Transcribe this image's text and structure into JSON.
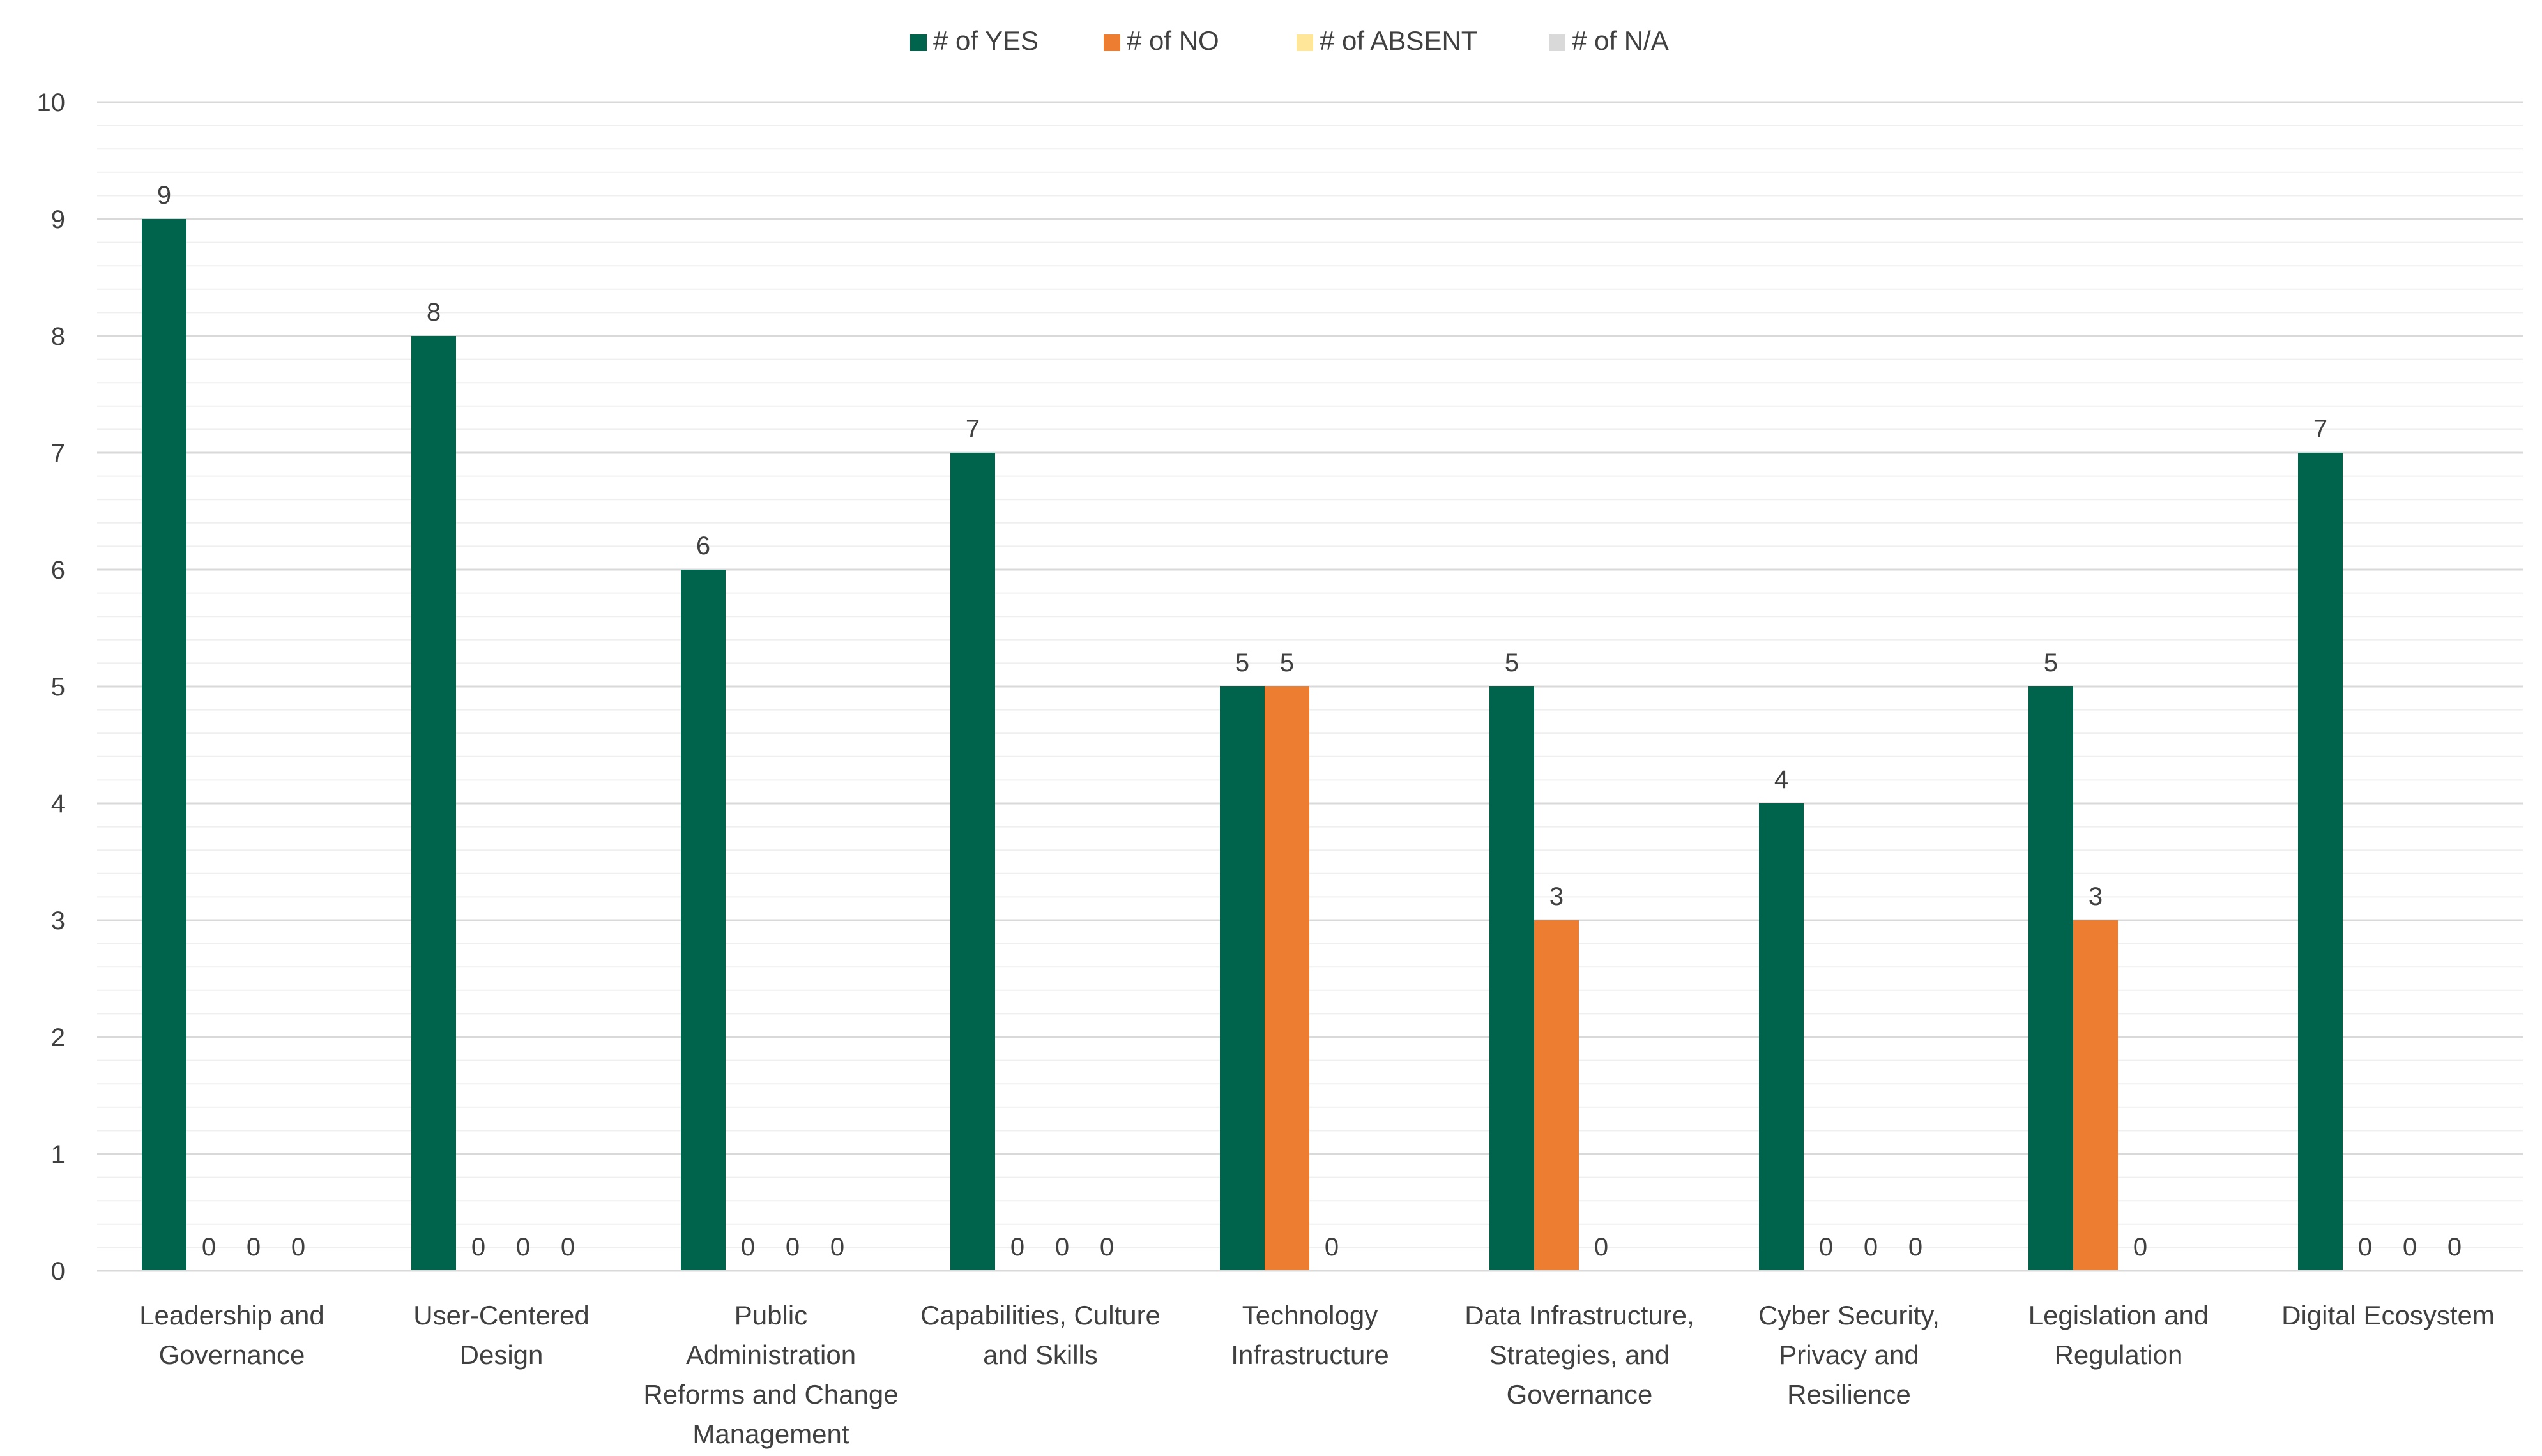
{
  "chart_data": {
    "type": "bar",
    "title": "",
    "xlabel": "",
    "ylabel": "",
    "ylim": [
      0,
      10
    ],
    "yticks": [
      0,
      1,
      2,
      3,
      4,
      5,
      6,
      7,
      8,
      9,
      10
    ],
    "grid": true,
    "legend_position": "top-center",
    "categories": [
      [
        "Leadership and",
        "Governance"
      ],
      [
        "User-Centered",
        "Design"
      ],
      [
        "Public",
        "Administration",
        "Reforms and Change",
        "Management"
      ],
      [
        "Capabilities, Culture",
        "and Skills"
      ],
      [
        "Technology",
        "Infrastructure"
      ],
      [
        "Data Infrastructure,",
        "Strategies, and",
        "Governance"
      ],
      [
        "Cyber Security,",
        "Privacy and",
        "Resilience"
      ],
      [
        "Legislation and",
        "Regulation"
      ],
      [
        "Digital Ecosystem"
      ]
    ],
    "series": [
      {
        "name": "# of YES",
        "color": "#00634b",
        "values": [
          9,
          8,
          6,
          7,
          5,
          5,
          4,
          5,
          7
        ]
      },
      {
        "name": "# of NO",
        "color": "#ed7d31",
        "values": [
          0,
          0,
          0,
          0,
          5,
          3,
          0,
          3,
          0
        ]
      },
      {
        "name": "# of ABSENT",
        "color": "#ffe699",
        "values": [
          0,
          0,
          0,
          0,
          0,
          0,
          0,
          0,
          0
        ]
      },
      {
        "name": "# of N/A",
        "color": "#d9d9d9",
        "values": [
          0,
          0,
          0,
          0,
          null,
          null,
          0,
          null,
          0
        ]
      }
    ]
  }
}
